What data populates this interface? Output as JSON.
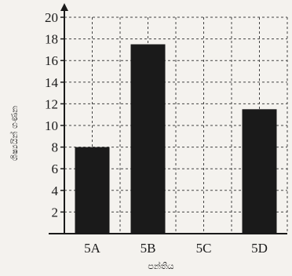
{
  "chart_data": {
    "type": "bar",
    "categories": [
      "5A",
      "5B",
      "5C",
      "5D"
    ],
    "values": [
      8,
      17.5,
      0,
      11.5
    ],
    "ylim": [
      0,
      20
    ],
    "yticks": [
      2,
      4,
      6,
      8,
      10,
      12,
      14,
      16,
      18,
      20
    ],
    "xlabel": "පන්තිය",
    "ylabel": "ශිෂ්‍යයින් ගණන",
    "grid": true,
    "bar_color": "#1a1a1a"
  }
}
